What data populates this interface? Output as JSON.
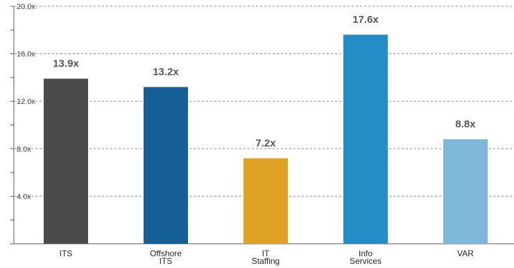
{
  "chart_data": {
    "type": "bar",
    "categories": [
      "ITS",
      "Offshore\nITS",
      "IT\nStaffing",
      "Info\nServices",
      "VAR"
    ],
    "values": [
      13.9,
      13.2,
      7.2,
      17.6,
      8.8
    ],
    "data_labels": [
      "13.9x",
      "13.2x",
      "7.2x",
      "17.6x",
      "8.8x"
    ],
    "yticks": [
      4.0,
      8.0,
      12.0,
      16.0,
      20.0
    ],
    "ytick_labels": [
      "4.0x",
      "8.0x",
      "12.0x",
      "16.0x",
      "20.0x"
    ],
    "ylim": [
      0,
      20
    ],
    "grid": true,
    "title": "",
    "xlabel": "",
    "ylabel": "",
    "colors": [
      "#4a4b4d",
      "#155f96",
      "#dfa223",
      "#248dc6",
      "#7db8da"
    ]
  }
}
